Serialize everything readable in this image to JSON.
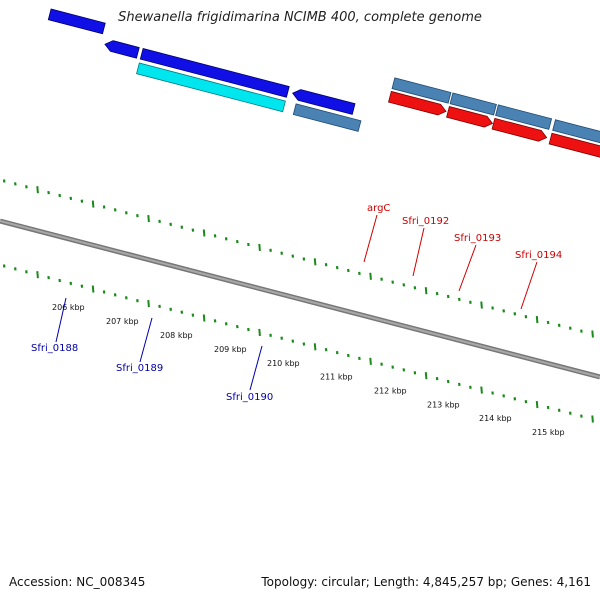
{
  "title": "Shewanella frigidimarina NCIMB 400, complete genome",
  "footer": {
    "accession": "Accession: NC_008345",
    "summary": "Topology: circular; Length: 4,845,257 bp; Genes: 4,161"
  },
  "colors": {
    "backbone": "#888888",
    "tick": "#1a8a1a",
    "gene_blue": "#1010e6",
    "gene_cyan": "#00e6ee",
    "gene_steel": "#4a82b4",
    "gene_red": "#ee1111",
    "label_blue": "#0000aa",
    "label_red": "#cc0000"
  },
  "scale_labels": [
    "206 kbp",
    "207 kbp",
    "208 kbp",
    "209 kbp",
    "210 kbp",
    "211 kbp",
    "212 kbp",
    "213 kbp",
    "214 kbp",
    "215 kbp"
  ],
  "gene_labels": [
    {
      "text": "Sfri_0188",
      "color": "label_blue"
    },
    {
      "text": "Sfri_0189",
      "color": "label_blue"
    },
    {
      "text": "Sfri_0190",
      "color": "label_blue"
    },
    {
      "text": "argC",
      "color": "label_red"
    },
    {
      "text": "Sfri_0192",
      "color": "label_red"
    },
    {
      "text": "Sfri_0193",
      "color": "label_red"
    },
    {
      "text": "Sfri_0194",
      "color": "label_red"
    }
  ]
}
